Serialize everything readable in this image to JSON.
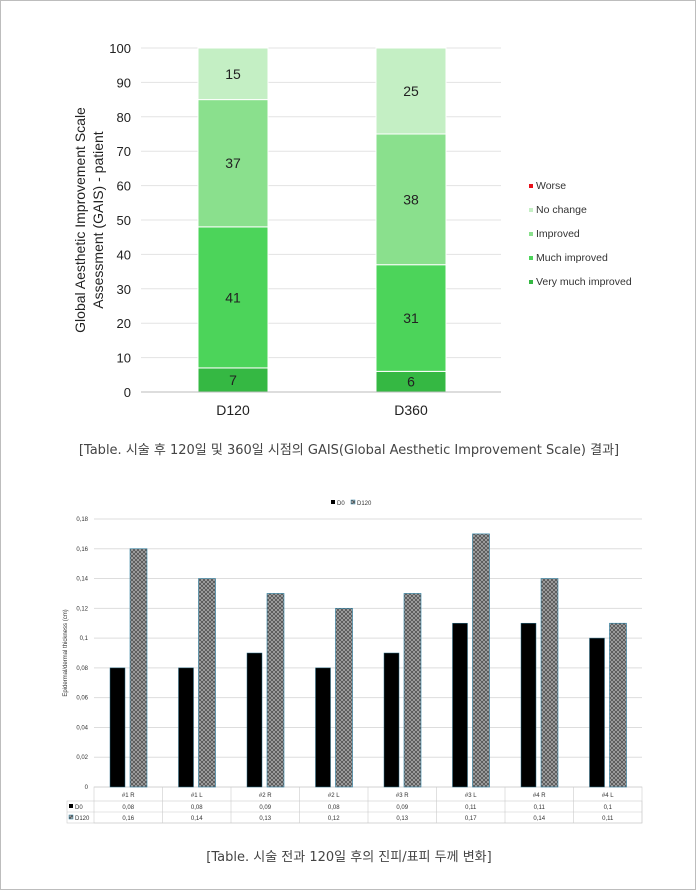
{
  "chart_data": [
    {
      "type": "stacked-bar",
      "ylabel": "Global Aesthetic Improvement Scale Assessment (GAIS) - patient",
      "ylim": [
        0,
        100
      ],
      "yticks": [
        0,
        10,
        20,
        30,
        40,
        50,
        60,
        70,
        80,
        90,
        100
      ],
      "categories": [
        "D120",
        "D360"
      ],
      "series": [
        {
          "name": "Very much improved",
          "values": [
            7,
            6
          ],
          "color": "#35b843"
        },
        {
          "name": "Much improved",
          "values": [
            41,
            31
          ],
          "color": "#4cd45a"
        },
        {
          "name": "Improved",
          "values": [
            37,
            38
          ],
          "color": "#8ae08d"
        },
        {
          "name": "No change",
          "values": [
            15,
            25
          ],
          "color": "#c4efc4"
        },
        {
          "name": "Worse",
          "values": [
            0,
            0
          ],
          "color": "#e8101a"
        }
      ],
      "legend_order": [
        "Worse",
        "No change",
        "Improved",
        "Much improved",
        "Very much improved"
      ],
      "caption": "[Table. 시술 후 120일 및 360일 시점의 GAIS(Global Aesthetic Improvement Scale) 결과]"
    },
    {
      "type": "bar",
      "ylabel": "Epidermal/dermal thickness (cm)",
      "ylim": [
        0,
        0.18
      ],
      "yticks": [
        "0",
        "0,02",
        "0,04",
        "0,06",
        "0,08",
        "0,1",
        "0,12",
        "0,14",
        "0,16",
        "0,18"
      ],
      "categories": [
        "#1 R",
        "#1 L",
        "#2 R",
        "#2 L",
        "#3 R",
        "#3 L",
        "#4 R",
        "#4 L"
      ],
      "series": [
        {
          "name": "D0",
          "values": [
            0.08,
            0.08,
            0.09,
            0.08,
            0.09,
            0.11,
            0.11,
            0.1
          ],
          "labels": [
            "0,08",
            "0,08",
            "0,09",
            "0,08",
            "0,09",
            "0,11",
            "0,11",
            "0,1"
          ],
          "color": "#000000"
        },
        {
          "name": "D120",
          "values": [
            0.16,
            0.14,
            0.13,
            0.12,
            0.13,
            0.17,
            0.14,
            0.11
          ],
          "labels": [
            "0,16",
            "0,14",
            "0,13",
            "0,12",
            "0,13",
            "0,17",
            "0,14",
            "0,11"
          ],
          "color": "#8a8a8a"
        }
      ],
      "caption": "[Table. 시술 전과 120일 후의 진피/표피 두께 변화]"
    }
  ]
}
